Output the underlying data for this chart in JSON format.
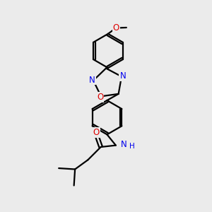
{
  "bg_color": "#ebebeb",
  "bond_color": "#000000",
  "bond_width": 1.6,
  "atom_colors": {
    "N": "#0000ee",
    "O": "#dd0000",
    "C": "#000000"
  },
  "fig_size": [
    3.0,
    3.0
  ],
  "dpi": 100
}
